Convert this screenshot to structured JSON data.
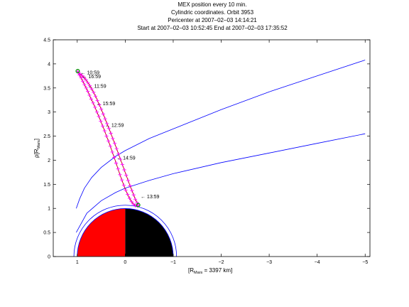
{
  "title_lines": [
    "MEX position every 10 min.",
    "Cylindric coordinates. Orbit 3953",
    "Pericenter at 2007–02–03 14:14:21",
    "Start at 2007–02–03 10:52:45 End at 2007–02–03 17:35:52"
  ],
  "colors": {
    "boundary": "#0000ff",
    "orbit": "#c00000",
    "tick_marks": "#ff00ff",
    "endpoint": "#00a000",
    "mars_day": "#ff0000",
    "mars_night": "#000000"
  },
  "chart_data": {
    "type": "line",
    "xlabel": "[R",
    "xlabel_sub": "Mars",
    "xlabel_rest": " = 3397 km]",
    "ylabel": "ρ[R",
    "ylabel_sub": "Mars",
    "ylabel_rest": "]",
    "xlim": [
      1.5,
      -5.1
    ],
    "ylim": [
      0,
      4.5
    ],
    "x_reversed": true,
    "xticks": [
      1,
      0,
      -1,
      -2,
      -3,
      -4,
      -5
    ],
    "xtick_labels": [
      "1",
      "0",
      "−1",
      "−2",
      "−3",
      "−4",
      "−5"
    ],
    "yticks": [
      0,
      0.5,
      1,
      1.5,
      2,
      2.5,
      3,
      3.5,
      4,
      4.5
    ],
    "ytick_labels": [
      "0",
      "0.5",
      "1",
      "1.5",
      "2",
      "2.5",
      "3",
      "3.5",
      "4",
      "4.5"
    ],
    "mars_radius": 1,
    "outer_circle_radius": 1.07,
    "boundaries": [
      {
        "x": [
          1.02,
          0.95,
          0.85,
          0.7,
          0.5,
          0.2,
          0,
          -0.5,
          -1,
          -2,
          -3,
          -4,
          -5
        ],
        "y": [
          1.0,
          1.2,
          1.42,
          1.64,
          1.85,
          2.08,
          2.2,
          2.45,
          2.65,
          3.05,
          3.42,
          3.75,
          4.08
        ]
      },
      {
        "x": [
          1.02,
          0.8,
          0.5,
          0.2,
          0,
          -0.5,
          -1,
          -2,
          -3,
          -4,
          -5
        ],
        "y": [
          0.5,
          0.9,
          1.16,
          1.33,
          1.42,
          1.58,
          1.72,
          1.95,
          2.15,
          2.35,
          2.55
        ]
      }
    ],
    "orbit": {
      "inbound": {
        "x": [
          0.99,
          0.955,
          0.92,
          0.885,
          0.85,
          0.815,
          0.78,
          0.745,
          0.71,
          0.67,
          0.63,
          0.59,
          0.55,
          0.51,
          0.47,
          0.43,
          0.39,
          0.35,
          0.31,
          0.27,
          0.23,
          0.19,
          0.15,
          0.11,
          0.07,
          0.03,
          -0.01,
          -0.05,
          -0.09,
          -0.13,
          -0.17,
          -0.21,
          -0.25
        ],
        "y": [
          3.84,
          3.77,
          3.71,
          3.64,
          3.57,
          3.5,
          3.43,
          3.35,
          3.27,
          3.19,
          3.1,
          3.0,
          2.91,
          2.81,
          2.71,
          2.61,
          2.5,
          2.4,
          2.29,
          2.17,
          2.06,
          1.94,
          1.82,
          1.7,
          1.59,
          1.48,
          1.38,
          1.29,
          1.21,
          1.14,
          1.09,
          1.06,
          1.05
        ]
      },
      "outbound": {
        "x": [
          -0.27,
          -0.245,
          -0.21,
          -0.175,
          -0.14,
          -0.1,
          -0.06,
          -0.02,
          0.02,
          0.06,
          0.1,
          0.14,
          0.18,
          0.22,
          0.26,
          0.3,
          0.34,
          0.38,
          0.42,
          0.46,
          0.5,
          0.54,
          0.58,
          0.62,
          0.66,
          0.7,
          0.74,
          0.78,
          0.82,
          0.86,
          0.9,
          0.94,
          0.97
        ],
        "y": [
          1.07,
          1.12,
          1.19,
          1.28,
          1.37,
          1.47,
          1.58,
          1.69,
          1.8,
          1.91,
          2.02,
          2.13,
          2.24,
          2.35,
          2.45,
          2.56,
          2.66,
          2.76,
          2.86,
          2.96,
          3.06,
          3.15,
          3.24,
          3.33,
          3.41,
          3.48,
          3.55,
          3.61,
          3.67,
          3.72,
          3.76,
          3.79,
          3.81
        ]
      },
      "start_point": {
        "x": 0.99,
        "y": 3.85
      },
      "end_point": {
        "x": -0.27,
        "y": 1.07
      }
    },
    "annotations": [
      {
        "text": "← 10:59",
        "x": 0.93,
        "y": 3.82
      },
      {
        "text": "← 16:59",
        "x": 0.9,
        "y": 3.74
      },
      {
        "text": "← 11:59",
        "x": 0.78,
        "y": 3.54
      },
      {
        "text": "← 15:59",
        "x": 0.6,
        "y": 3.18
      },
      {
        "text": "← 12:59",
        "x": 0.42,
        "y": 2.73
      },
      {
        "text": "← 14:59",
        "x": 0.18,
        "y": 2.05
      },
      {
        "text": "← 13:59",
        "x": -0.32,
        "y": 1.25
      }
    ]
  }
}
